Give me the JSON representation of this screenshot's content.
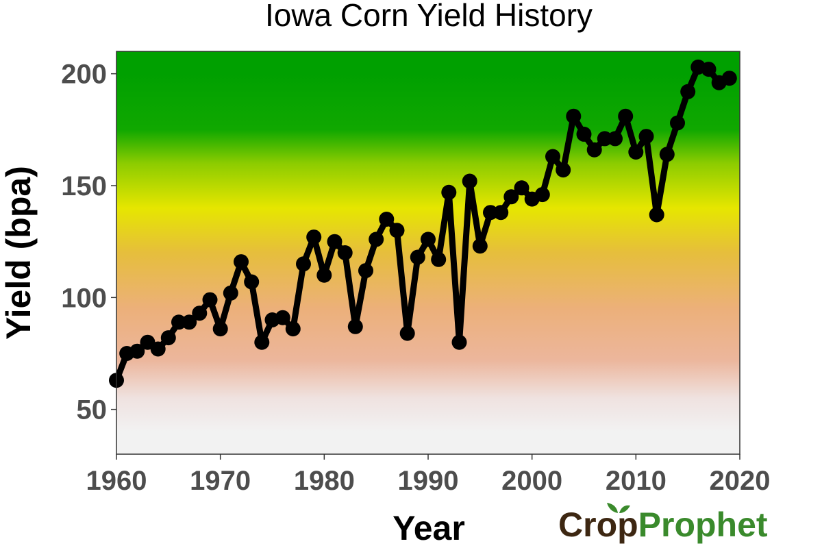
{
  "chart_data": {
    "type": "line",
    "title": "Iowa Corn Yield History",
    "xlabel": "Year",
    "ylabel": "Yield (bpa)",
    "xlim": [
      1960,
      2020
    ],
    "ylim": [
      30,
      210
    ],
    "xticks": [
      1960,
      1970,
      1980,
      1990,
      2000,
      2010,
      2020
    ],
    "yticks": [
      50,
      100,
      150,
      200
    ],
    "grid": false,
    "line_color": "#000000",
    "background_gradient": [
      {
        "value": 210,
        "color": "#00a000"
      },
      {
        "value": 200,
        "color": "#00a000"
      },
      {
        "value": 175,
        "color": "#10a800"
      },
      {
        "value": 160,
        "color": "#8ccc00"
      },
      {
        "value": 140,
        "color": "#e6e600"
      },
      {
        "value": 120,
        "color": "#e6be3c"
      },
      {
        "value": 95,
        "color": "#ecb07a"
      },
      {
        "value": 72,
        "color": "#ecb69c"
      },
      {
        "value": 55,
        "color": "#efe2e0"
      },
      {
        "value": 40,
        "color": "#f2f2f2"
      },
      {
        "value": 30,
        "color": "#f2f2f2"
      }
    ],
    "x": [
      1960,
      1961,
      1962,
      1963,
      1964,
      1965,
      1966,
      1967,
      1968,
      1969,
      1970,
      1971,
      1972,
      1973,
      1974,
      1975,
      1976,
      1977,
      1978,
      1979,
      1980,
      1981,
      1982,
      1983,
      1984,
      1985,
      1986,
      1987,
      1988,
      1989,
      1990,
      1991,
      1992,
      1993,
      1994,
      1995,
      1996,
      1997,
      1998,
      1999,
      2000,
      2001,
      2002,
      2003,
      2004,
      2005,
      2006,
      2007,
      2008,
      2009,
      2010,
      2011,
      2012,
      2013,
      2014,
      2015,
      2016,
      2017,
      2018,
      2019
    ],
    "series": [
      {
        "values": [
          63,
          75,
          76,
          80,
          77,
          82,
          89,
          89,
          93,
          99,
          86,
          102,
          116,
          107,
          80,
          90,
          91,
          86,
          115,
          127,
          110,
          125,
          120,
          87,
          112,
          126,
          135,
          130,
          84,
          118,
          126,
          117,
          147,
          80,
          152,
          123,
          138,
          138,
          145,
          149,
          144,
          146,
          163,
          157,
          181,
          173,
          166,
          171,
          171,
          181,
          165,
          172,
          137,
          164,
          178,
          192,
          203,
          202,
          196,
          198
        ]
      }
    ]
  },
  "logo": {
    "text_crop": "Crop",
    "text_prophet": "Prophet",
    "crop_color": "#3d2712",
    "prophet_color": "#3a8a2c",
    "leaf_color": "#3a8a2c"
  }
}
